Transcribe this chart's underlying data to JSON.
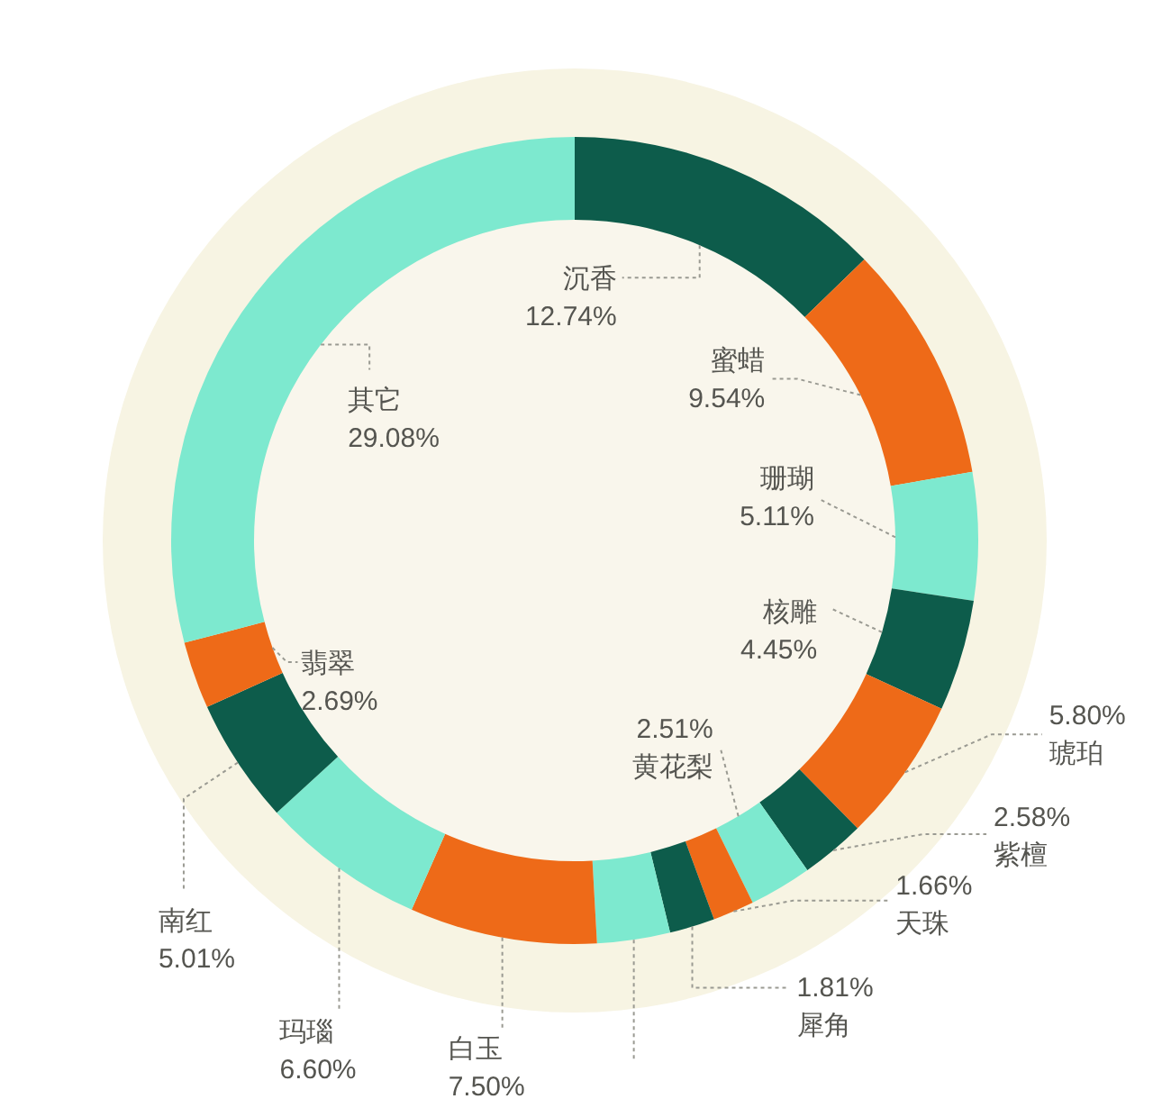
{
  "chart_data": {
    "type": "donut",
    "categories": [
      "沉香",
      "蜜蜡",
      "珊瑚",
      "核雕",
      "琥珀",
      "紫檀",
      "黄花梨",
      "天珠",
      "犀角",
      null,
      "白玉",
      "玛瑙",
      "南红",
      "翡翠",
      "其它"
    ],
    "values": [
      12.74,
      9.54,
      5.11,
      4.45,
      5.8,
      2.58,
      2.51,
      1.66,
      1.81,
      2.92,
      7.5,
      6.6,
      5.01,
      2.69,
      29.08
    ],
    "value_labels": [
      "12.74%",
      "9.54%",
      "5.11%",
      "4.45%",
      "5.80%",
      "2.58%",
      "2.51%",
      "1.66%",
      "1.81%",
      null,
      "7.50%",
      "6.60%",
      "5.01%",
      "2.69%",
      "29.08%"
    ],
    "colors": [
      "#0d5c4b",
      "#ee6a18",
      "#7de9cf",
      "#0d5c4b",
      "#ee6a18",
      "#0d5c4b",
      "#7de9cf",
      "#ee6a18",
      "#0d5c4b",
      "#7de9cf",
      "#ee6a18",
      "#7de9cf",
      "#0d5c4b",
      "#ee6a18",
      "#7de9cf"
    ]
  }
}
